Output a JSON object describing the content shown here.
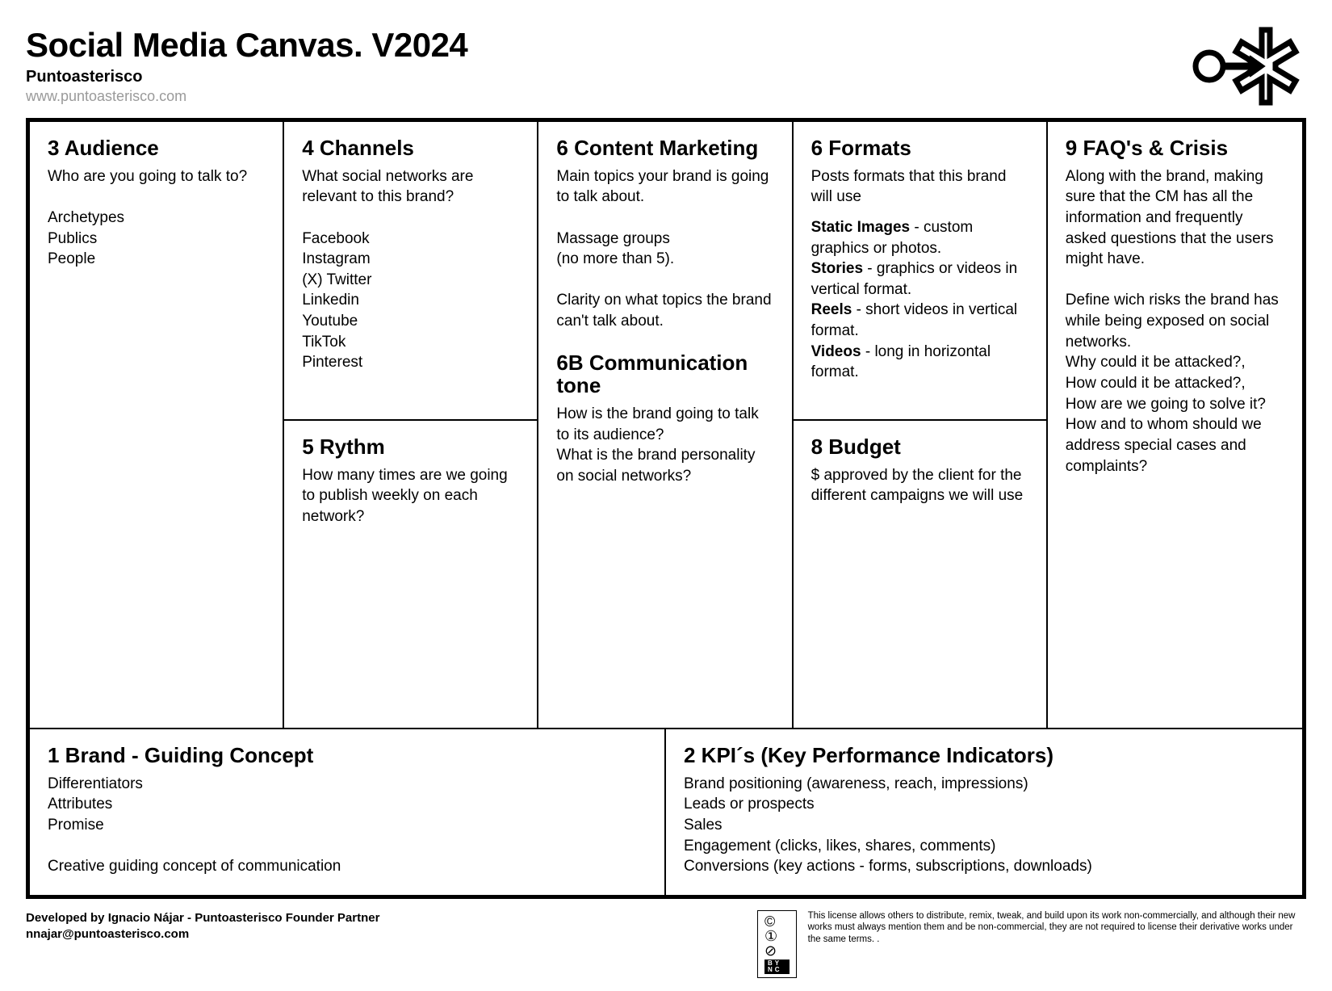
{
  "header": {
    "title": "Social Media Canvas. V2024",
    "subtitle": "Puntoasterisco",
    "url": "www.puntoasterisco.com"
  },
  "cells": {
    "audience": {
      "title": "3 Audience",
      "body": "Who are you going to talk to?\n\nArchetypes\nPublics\nPeople"
    },
    "channels": {
      "title": "4 Channels",
      "body": "What social networks are relevant to this brand?\n\nFacebook\nInstagram\n(X) Twitter\nLinkedin\nYoutube\nTikTok\nPinterest"
    },
    "rythm": {
      "title": "5 Rythm",
      "body": "How many times are we going to publish weekly on each network?"
    },
    "content": {
      "title": "6 Content Marketing",
      "body": "Main topics your brand is going to talk about.\n\nMassage groups\n(no more than 5).\n\nClarity on what topics the brand can't talk about."
    },
    "tone": {
      "title": "6B Communication tone",
      "body": "How is the brand going to talk to its audience?\nWhat is the brand personality on social networks?"
    },
    "formats": {
      "title": "6 Formats",
      "intro": "Posts formats that this brand will use",
      "items": [
        {
          "bold": "Static Images",
          "rest": " - custom graphics or photos."
        },
        {
          "bold": "Stories",
          "rest": " - graphics or videos in vertical format."
        },
        {
          "bold": "Reels",
          "rest": " - short videos in vertical format."
        },
        {
          "bold": "Videos",
          "rest": " - long in horizontal format."
        }
      ]
    },
    "budget": {
      "title": "8 Budget",
      "body": "$ approved by the client for the different campaigns we will use"
    },
    "faq": {
      "title": "9 FAQ's & Crisis",
      "body": "Along with the brand, making sure that the CM has all the information and frequently asked questions that the users might have.\n\nDefine wich risks the brand has while being exposed on social networks.\nWhy could it be attacked?,\nHow could it be attacked?,\nHow are we going to solve it?\nHow and to whom should we address special cases and complaints?"
    },
    "brand": {
      "title": "1 Brand - Guiding Concept",
      "body": "Differentiators\nAttributes\nPromise\n\nCreative guiding concept of communication"
    },
    "kpi": {
      "title": "2 KPI´s (Key Performance Indicators)",
      "body": "Brand positioning (awareness, reach, impressions)\nLeads or prospects\nSales\nEngagement (clicks, likes, shares, comments)\nConversions (key actions - forms, subscriptions, downloads)"
    }
  },
  "footer": {
    "developed": "Developed by Ignacio Nájar - Puntoasterisco Founder Partner",
    "email": "nnajar@puntoasterisco.com",
    "license": "This license allows others to distribute, remix, tweak, and build upon its work non-commercially, and although their new works must always mention them and be non-commercial, they are not required to license their derivative works under the same terms. .",
    "cc_label": "BY   NC"
  },
  "style": {
    "border_color": "#000000",
    "background": "#ffffff",
    "url_color": "#9a9a9a"
  }
}
